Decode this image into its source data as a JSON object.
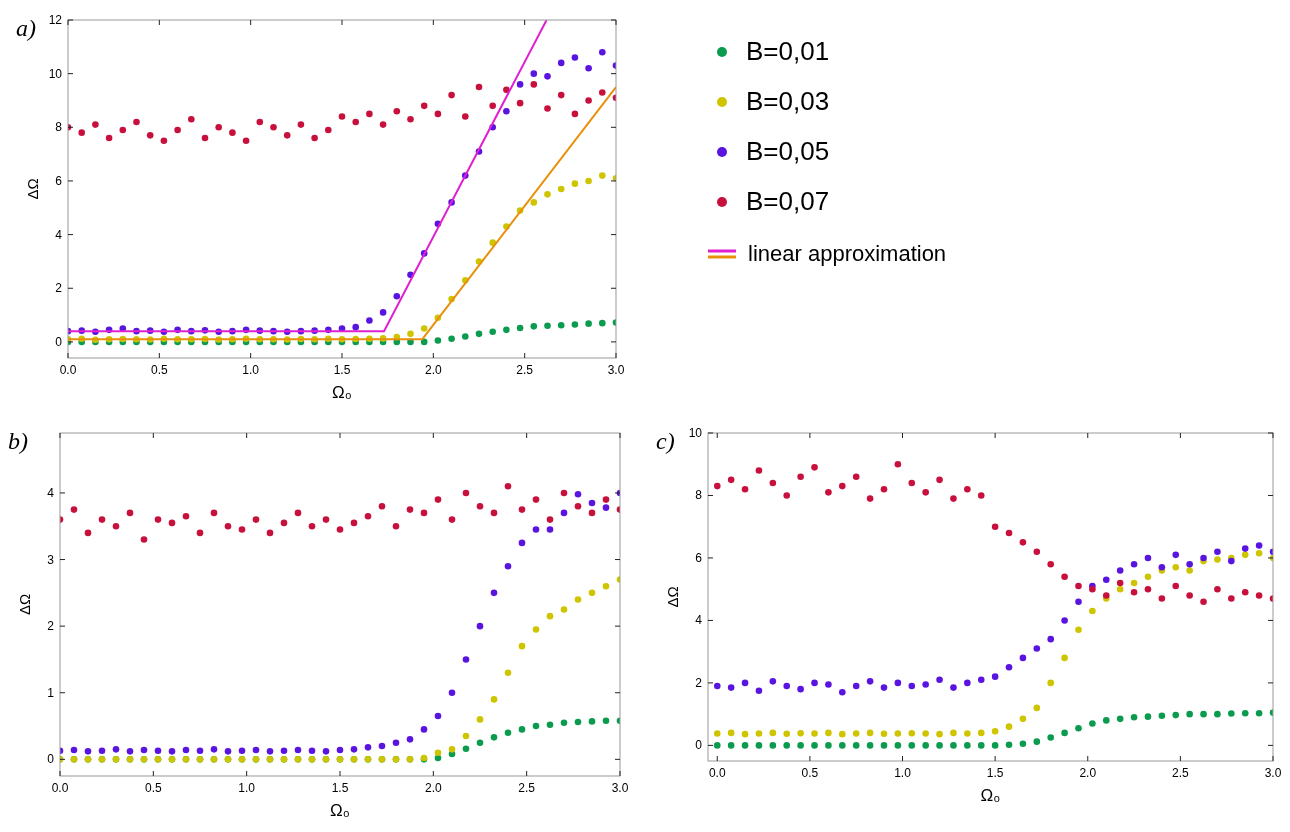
{
  "chart_data": [
    {
      "type": "scatter",
      "title": "a)",
      "xlabel": "Ω₀",
      "ylabel": "ΔΩ",
      "xlim": [
        0,
        3
      ],
      "ylim": [
        -0.6,
        12
      ],
      "xticks": [
        {
          "value": 0,
          "label": "0.0"
        },
        0.5,
        {
          "value": 1,
          "label": "1.0"
        },
        1.5,
        {
          "value": 2,
          "label": "2.0"
        },
        2.5,
        {
          "value": 3,
          "label": "3.0"
        }
      ],
      "yticks": [
        0,
        2,
        4,
        6,
        8,
        10,
        12
      ],
      "grid": false,
      "marker": "circle",
      "legend": "right",
      "x": [
        0,
        0.075,
        0.15,
        0.225,
        0.3,
        0.375,
        0.45,
        0.525,
        0.6,
        0.675,
        0.75,
        0.825,
        0.9,
        0.975,
        1.05,
        1.125,
        1.2,
        1.275,
        1.35,
        1.425,
        1.5,
        1.575,
        1.65,
        1.725,
        1.8,
        1.875,
        1.95,
        2.025,
        2.1,
        2.175,
        2.25,
        2.325,
        2.4,
        2.475,
        2.55,
        2.625,
        2.7,
        2.775,
        2.85,
        2.925,
        3.0
      ],
      "series": [
        {
          "name": "B=0,01",
          "color": "#0b9b4f",
          "values": [
            0,
            0,
            0,
            0,
            0,
            0,
            0,
            0,
            0,
            0,
            0,
            0,
            0,
            0,
            0,
            0,
            0,
            0,
            0,
            0,
            0,
            0,
            0,
            0,
            0,
            0,
            0,
            0.05,
            0.12,
            0.2,
            0.3,
            0.38,
            0.45,
            0.52,
            0.58,
            0.6,
            0.62,
            0.65,
            0.68,
            0.7,
            0.72
          ]
        },
        {
          "name": "B=0,03",
          "color": "#cfc400",
          "values": [
            0.1,
            0.12,
            0.08,
            0.1,
            0.11,
            0.1,
            0.09,
            0.12,
            0.1,
            0.1,
            0.11,
            0.09,
            0.1,
            0.12,
            0.1,
            0.1,
            0.09,
            0.11,
            0.1,
            0.12,
            0.1,
            0.11,
            0.12,
            0.13,
            0.18,
            0.3,
            0.5,
            0.9,
            1.6,
            2.3,
            3.0,
            3.7,
            4.3,
            4.9,
            5.2,
            5.5,
            5.7,
            5.9,
            6.0,
            6.2,
            6.1
          ]
        },
        {
          "name": "B=0,05",
          "color": "#5a14e0",
          "values": [
            0.4,
            0.42,
            0.38,
            0.45,
            0.5,
            0.4,
            0.42,
            0.38,
            0.45,
            0.4,
            0.43,
            0.38,
            0.4,
            0.45,
            0.42,
            0.4,
            0.38,
            0.4,
            0.42,
            0.45,
            0.5,
            0.55,
            0.8,
            1.1,
            1.7,
            2.5,
            3.3,
            4.4,
            5.2,
            6.2,
            7.1,
            8.0,
            8.6,
            9.6,
            10.0,
            9.9,
            10.4,
            10.6,
            10.2,
            10.8,
            10.3
          ]
        },
        {
          "name": "B=0,07",
          "color": "#c8103c",
          "values": [
            8.0,
            7.8,
            8.1,
            7.6,
            7.9,
            8.2,
            7.7,
            7.5,
            7.9,
            8.3,
            7.6,
            8.0,
            7.8,
            7.5,
            8.2,
            8.0,
            7.7,
            8.1,
            7.6,
            7.9,
            8.4,
            8.2,
            8.5,
            8.1,
            8.6,
            8.3,
            8.8,
            8.5,
            9.2,
            8.4,
            9.5,
            8.8,
            9.4,
            8.9,
            9.6,
            8.7,
            9.2,
            8.5,
            9.0,
            9.3,
            9.1
          ]
        },
        {
          "name": "linear approximation",
          "type": "line",
          "marker": "none",
          "color": "#e020d0",
          "x": [
            0,
            1.73,
            2.62
          ],
          "values": [
            0.4,
            0.4,
            12
          ]
        },
        {
          "type": "line",
          "marker": "none",
          "color": "#e8900c",
          "x": [
            0,
            1.94,
            3.0
          ],
          "values": [
            0.1,
            0.1,
            9.5
          ]
        }
      ]
    },
    {
      "type": "scatter",
      "title": "b)",
      "xlabel": "Ω₀",
      "ylabel": "ΔΩ",
      "xlim": [
        0,
        3
      ],
      "ylim": [
        -0.25,
        4.9
      ],
      "xticks": [
        {
          "value": 0,
          "label": "0.0"
        },
        0.5,
        {
          "value": 1,
          "label": "1.0"
        },
        1.5,
        {
          "value": 2,
          "label": "2.0"
        },
        2.5,
        {
          "value": 3,
          "label": "3.0"
        }
      ],
      "yticks": [
        0,
        1,
        2,
        3,
        4
      ],
      "grid": false,
      "marker": "circle",
      "x": [
        0,
        0.075,
        0.15,
        0.225,
        0.3,
        0.375,
        0.45,
        0.525,
        0.6,
        0.675,
        0.75,
        0.825,
        0.9,
        0.975,
        1.05,
        1.125,
        1.2,
        1.275,
        1.35,
        1.425,
        1.5,
        1.575,
        1.65,
        1.725,
        1.8,
        1.875,
        1.95,
        2.025,
        2.1,
        2.175,
        2.25,
        2.325,
        2.4,
        2.475,
        2.55,
        2.625,
        2.7,
        2.775,
        2.85,
        2.925,
        3.0
      ],
      "series": [
        {
          "color": "#0b9b4f",
          "values": [
            0,
            0,
            0,
            0,
            0,
            0,
            0,
            0,
            0,
            0,
            0,
            0,
            0,
            0,
            0,
            0,
            0,
            0,
            0,
            0,
            0,
            0,
            0,
            0,
            0,
            0,
            0,
            0.02,
            0.08,
            0.16,
            0.25,
            0.33,
            0.4,
            0.45,
            0.5,
            0.52,
            0.55,
            0.56,
            0.57,
            0.58,
            0.58
          ]
        },
        {
          "color": "#cfc400",
          "values": [
            0,
            0,
            0,
            0,
            0,
            0,
            0,
            0,
            0,
            0,
            0,
            0,
            0,
            0,
            0,
            0,
            0,
            0,
            0,
            0,
            0,
            0,
            0,
            0,
            0,
            0,
            0.02,
            0.1,
            0.15,
            0.35,
            0.6,
            0.9,
            1.3,
            1.7,
            1.95,
            2.15,
            2.25,
            2.4,
            2.5,
            2.6,
            2.7
          ]
        },
        {
          "color": "#5a14e0",
          "values": [
            0.13,
            0.14,
            0.12,
            0.13,
            0.15,
            0.12,
            0.14,
            0.13,
            0.12,
            0.14,
            0.13,
            0.15,
            0.12,
            0.13,
            0.14,
            0.12,
            0.13,
            0.14,
            0.13,
            0.12,
            0.14,
            0.15,
            0.18,
            0.2,
            0.25,
            0.3,
            0.45,
            0.65,
            1.0,
            1.5,
            2.0,
            2.5,
            2.9,
            3.25,
            3.45,
            3.45,
            3.7,
            3.98,
            3.85,
            3.78,
            4.0
          ]
        },
        {
          "color": "#c8103c",
          "values": [
            3.6,
            3.75,
            3.4,
            3.6,
            3.5,
            3.7,
            3.3,
            3.6,
            3.55,
            3.65,
            3.4,
            3.7,
            3.5,
            3.45,
            3.6,
            3.4,
            3.55,
            3.7,
            3.5,
            3.6,
            3.45,
            3.55,
            3.65,
            3.8,
            3.5,
            3.75,
            3.7,
            3.9,
            3.6,
            4.0,
            3.8,
            3.7,
            4.1,
            3.75,
            3.9,
            3.6,
            4.0,
            3.8,
            3.7,
            3.9,
            3.75
          ]
        }
      ]
    },
    {
      "type": "scatter",
      "title": "c)",
      "xlabel": "Ω₀",
      "ylabel": "ΔΩ",
      "xlim": [
        -0.05,
        3
      ],
      "ylim": [
        -0.5,
        10
      ],
      "xticks": [
        {
          "value": 0,
          "label": "0.0"
        },
        0.5,
        {
          "value": 1,
          "label": "1.0"
        },
        1.5,
        {
          "value": 2,
          "label": "2.0"
        },
        2.5,
        {
          "value": 3,
          "label": "3.0"
        }
      ],
      "yticks": [
        0,
        2,
        4,
        6,
        8,
        10
      ],
      "grid": false,
      "marker": "circle",
      "x": [
        0,
        0.075,
        0.15,
        0.225,
        0.3,
        0.375,
        0.45,
        0.525,
        0.6,
        0.675,
        0.75,
        0.825,
        0.9,
        0.975,
        1.05,
        1.125,
        1.2,
        1.275,
        1.35,
        1.425,
        1.5,
        1.575,
        1.65,
        1.725,
        1.8,
        1.875,
        1.95,
        2.025,
        2.1,
        2.175,
        2.25,
        2.325,
        2.4,
        2.475,
        2.55,
        2.625,
        2.7,
        2.775,
        2.85,
        2.925,
        3.0
      ],
      "series": [
        {
          "color": "#0b9b4f",
          "values": [
            0,
            0,
            0,
            0,
            0,
            0,
            0,
            0,
            0,
            0,
            0,
            0,
            0,
            0,
            0,
            0,
            0,
            0,
            0,
            0,
            0,
            0.02,
            0.05,
            0.12,
            0.25,
            0.4,
            0.55,
            0.7,
            0.8,
            0.85,
            0.9,
            0.92,
            0.95,
            0.97,
            1.0,
            1.0,
            1.0,
            1.02,
            1.03,
            1.03,
            1.05
          ]
        },
        {
          "color": "#cfc400",
          "values": [
            0.38,
            0.4,
            0.36,
            0.38,
            0.4,
            0.37,
            0.39,
            0.38,
            0.4,
            0.36,
            0.38,
            0.4,
            0.37,
            0.38,
            0.39,
            0.38,
            0.36,
            0.4,
            0.38,
            0.4,
            0.45,
            0.6,
            0.85,
            1.2,
            2.0,
            2.8,
            3.7,
            4.3,
            4.7,
            5.0,
            5.2,
            5.4,
            5.6,
            5.7,
            5.6,
            5.9,
            5.95,
            6.0,
            6.1,
            6.15,
            6.0
          ]
        },
        {
          "color": "#5a14e0",
          "values": [
            1.9,
            1.85,
            2.0,
            1.75,
            2.05,
            1.9,
            1.8,
            2.0,
            1.95,
            1.7,
            1.9,
            2.05,
            1.85,
            2.0,
            1.9,
            1.95,
            2.1,
            1.85,
            2.0,
            2.1,
            2.2,
            2.5,
            2.8,
            3.1,
            3.4,
            4.0,
            4.6,
            5.1,
            5.3,
            5.6,
            5.8,
            6.0,
            5.7,
            6.1,
            5.8,
            6.0,
            6.2,
            5.9,
            6.3,
            6.4,
            6.2
          ]
        },
        {
          "color": "#c8103c",
          "values": [
            8.3,
            8.5,
            8.2,
            8.8,
            8.4,
            8.0,
            8.6,
            8.9,
            8.1,
            8.3,
            8.6,
            7.9,
            8.2,
            9.0,
            8.4,
            8.1,
            8.5,
            7.9,
            8.2,
            8.0,
            7.0,
            6.8,
            6.5,
            6.2,
            5.8,
            5.4,
            5.1,
            5.0,
            4.8,
            5.2,
            4.9,
            5.0,
            4.7,
            5.1,
            4.8,
            4.6,
            5.0,
            4.7,
            4.9,
            4.8,
            4.7
          ]
        }
      ]
    }
  ]
}
